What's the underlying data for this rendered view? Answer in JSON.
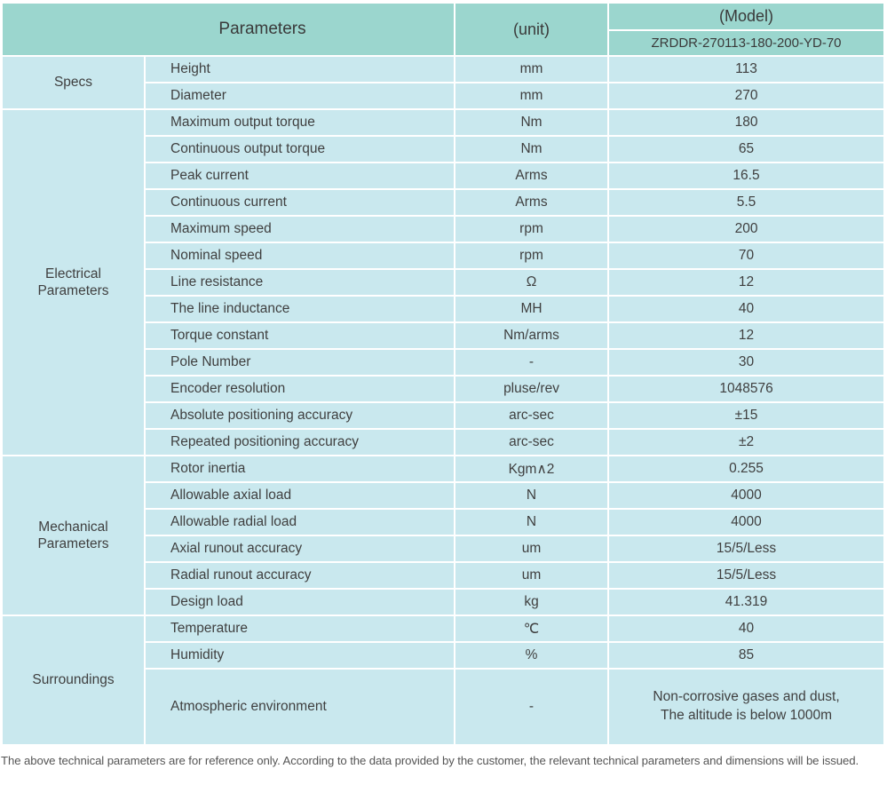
{
  "header": {
    "parameters_label": "Parameters",
    "unit_label": "(unit)",
    "model_label": "(Model)",
    "model_value": "ZRDDR-270113-180-200-YD-70"
  },
  "sections": [
    {
      "name": "Specs",
      "rows": [
        {
          "parameter": "Height",
          "unit": "mm",
          "value": "113"
        },
        {
          "parameter": "Diameter",
          "unit": "mm",
          "value": "270"
        }
      ]
    },
    {
      "name": "Electrical Parameters",
      "rows": [
        {
          "parameter": "Maximum output torque",
          "unit": "Nm",
          "value": "180"
        },
        {
          "parameter": "Continuous output torque",
          "unit": "Nm",
          "value": "65"
        },
        {
          "parameter": "Peak current",
          "unit": "Arms",
          "value": "16.5"
        },
        {
          "parameter": "Continuous current",
          "unit": "Arms",
          "value": "5.5"
        },
        {
          "parameter": "Maximum speed",
          "unit": "rpm",
          "value": "200"
        },
        {
          "parameter": "Nominal speed",
          "unit": "rpm",
          "value": "70"
        },
        {
          "parameter": "Line resistance",
          "unit": "Ω",
          "value": "12"
        },
        {
          "parameter": "The line inductance",
          "unit": "MH",
          "value": "40"
        },
        {
          "parameter": "Torque constant",
          "unit": "Nm/arms",
          "value": "12"
        },
        {
          "parameter": "Pole Number",
          "unit": "-",
          "value": "30"
        },
        {
          "parameter": "Encoder resolution",
          "unit": "pluse/rev",
          "value": "1048576"
        },
        {
          "parameter": "Absolute positioning accuracy",
          "unit": "arc-sec",
          "value": "±15"
        },
        {
          "parameter": "Repeated positioning accuracy",
          "unit": "arc-sec",
          "value": "±2"
        }
      ]
    },
    {
      "name": "Mechanical Parameters",
      "rows": [
        {
          "parameter": "Rotor inertia",
          "unit": "Kgm∧2",
          "value": "0.255"
        },
        {
          "parameter": "Allowable axial load",
          "unit": "N",
          "value": "4000"
        },
        {
          "parameter": "Allowable radial load",
          "unit": "N",
          "value": "4000"
        },
        {
          "parameter": "Axial runout accuracy",
          "unit": "um",
          "value": "15/5/Less"
        },
        {
          "parameter": "Radial runout accuracy",
          "unit": "um",
          "value": "15/5/Less"
        },
        {
          "parameter": "Design load",
          "unit": "kg",
          "value": "41.319"
        }
      ]
    },
    {
      "name": "Surroundings",
      "rows": [
        {
          "parameter": "Temperature",
          "unit": "℃",
          "value": "40"
        },
        {
          "parameter": "Humidity",
          "unit": "%",
          "value": "85"
        },
        {
          "parameter": "Atmospheric environment",
          "unit": "-",
          "value": "Non-corrosive gases and dust,\nThe altitude is below 1000m",
          "tall": true
        }
      ]
    }
  ],
  "footer": {
    "note": "The above technical parameters are for reference only. According to the data provided by the customer, the relevant technical parameters and dimensions will be issued."
  },
  "colors": {
    "header_bg": "#9bd6ce",
    "cell_bg": "#c9e8ee",
    "text": "#3f3f3f",
    "footer_text": "#555555",
    "table_bg": "#ffffff"
  }
}
